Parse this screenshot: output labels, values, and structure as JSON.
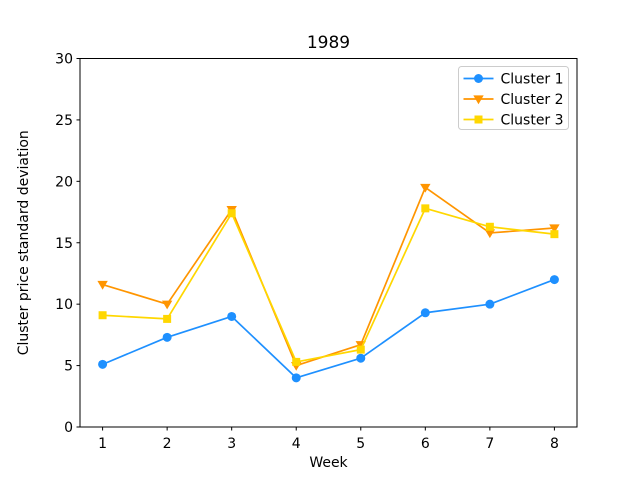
{
  "chart_data": {
    "type": "line",
    "title": "1989",
    "xlabel": "Week",
    "ylabel": "Cluster price standard deviation",
    "x": [
      1,
      2,
      3,
      4,
      5,
      6,
      7,
      8
    ],
    "xticks": [
      1,
      2,
      3,
      4,
      5,
      6,
      7,
      8
    ],
    "yticks": [
      0,
      5,
      10,
      15,
      20,
      25,
      30
    ],
    "xlim": [
      0.65,
      8.35
    ],
    "ylim": [
      0,
      30
    ],
    "grid": false,
    "legend_position": "upper right",
    "series": [
      {
        "name": "Cluster 1",
        "marker": "circle",
        "color": "#1E90FF",
        "values": [
          5.1,
          7.3,
          9.0,
          4.0,
          5.6,
          9.3,
          10.0,
          12.0
        ]
      },
      {
        "name": "Cluster 2",
        "marker": "triangle-down",
        "color": "#FF9500",
        "values": [
          11.6,
          10.0,
          17.7,
          5.0,
          6.7,
          19.5,
          15.8,
          16.2
        ]
      },
      {
        "name": "Cluster 3",
        "marker": "square",
        "color": "#FFD700",
        "values": [
          9.1,
          8.8,
          17.4,
          5.3,
          6.3,
          17.8,
          16.3,
          15.7
        ]
      }
    ],
    "colors": {
      "spine": "#000000",
      "background": "#ffffff",
      "legend_border": "#cccccc"
    }
  }
}
